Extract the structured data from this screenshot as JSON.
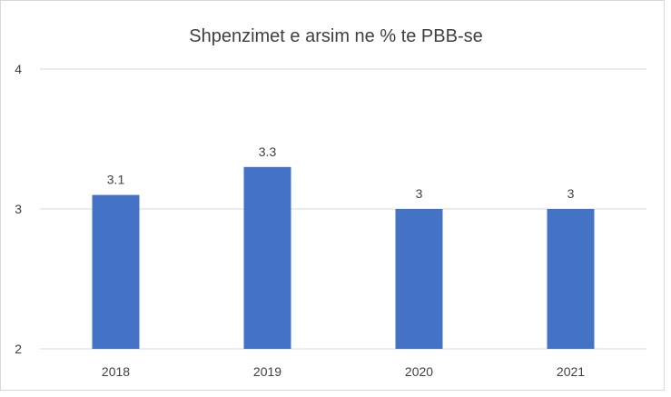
{
  "chart_data": {
    "type": "bar",
    "title": "Shpenzimet e arsim ne % te PBB-se",
    "xlabel": "",
    "ylabel": "",
    "categories": [
      "2018",
      "2019",
      "2020",
      "2021"
    ],
    "values": [
      3.1,
      3.3,
      3,
      3
    ],
    "data_labels": [
      "3.1",
      "3.3",
      "3",
      "3"
    ],
    "ylim": [
      2,
      4
    ],
    "yticks": [
      2,
      3,
      4
    ],
    "ytick_labels": [
      "2",
      "3",
      "4"
    ],
    "grid": true,
    "legend": "none",
    "bar_color": "#4472c4",
    "grid_color": "#d9d9d9",
    "text_color": "#404040"
  }
}
